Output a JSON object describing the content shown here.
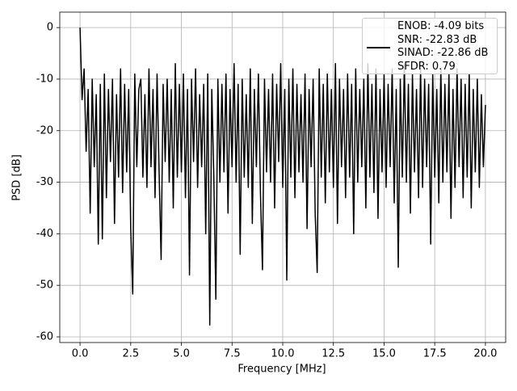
{
  "chart_data": {
    "type": "line",
    "xlabel": "Frequency [MHz]",
    "ylabel": "PSD [dB]",
    "xlim": [
      -1,
      21
    ],
    "ylim": [
      -61.1,
      3
    ],
    "xticks": [
      {
        "value": 0,
        "label": "0.0"
      },
      2.5,
      {
        "value": 5,
        "label": "5.0"
      },
      7.5,
      {
        "value": 10,
        "label": "10.0"
      },
      12.5,
      {
        "value": 15,
        "label": "15.0"
      },
      17.5,
      {
        "value": 20,
        "label": "20.0"
      }
    ],
    "yticks": [
      0,
      -10,
      -20,
      -30,
      -40,
      -50,
      -60
    ],
    "grid": true,
    "legend": "upper right",
    "x": [
      0,
      0.1,
      0.2,
      0.3,
      0.4,
      0.5,
      0.6,
      0.7,
      0.8,
      0.9,
      1,
      1.1,
      1.2,
      1.3,
      1.4,
      1.5,
      1.6,
      1.7,
      1.8,
      1.9,
      2,
      2.1,
      2.2,
      2.3,
      2.4,
      2.5,
      2.6,
      2.7,
      2.8,
      2.9,
      3,
      3.1,
      3.2,
      3.3,
      3.4,
      3.5,
      3.6,
      3.7,
      3.8,
      3.9,
      4,
      4.1,
      4.2,
      4.3,
      4.4,
      4.5,
      4.6,
      4.7,
      4.8,
      4.9,
      5,
      5.1,
      5.2,
      5.3,
      5.4,
      5.5,
      5.6,
      5.7,
      5.8,
      5.9,
      6,
      6.1,
      6.2,
      6.3,
      6.4,
      6.5,
      6.6,
      6.7,
      6.8,
      6.9,
      7,
      7.1,
      7.2,
      7.3,
      7.4,
      7.5,
      7.6,
      7.7,
      7.8,
      7.9,
      8,
      8.1,
      8.2,
      8.3,
      8.4,
      8.5,
      8.6,
      8.7,
      8.8,
      8.9,
      9,
      9.1,
      9.2,
      9.3,
      9.4,
      9.5,
      9.6,
      9.7,
      9.8,
      9.9,
      10,
      10.1,
      10.2,
      10.3,
      10.4,
      10.5,
      10.6,
      10.7,
      10.8,
      10.9,
      11,
      11.1,
      11.2,
      11.3,
      11.4,
      11.5,
      11.6,
      11.7,
      11.8,
      11.9,
      12,
      12.1,
      12.2,
      12.3,
      12.4,
      12.5,
      12.6,
      12.7,
      12.8,
      12.9,
      13,
      13.1,
      13.2,
      13.3,
      13.4,
      13.5,
      13.6,
      13.7,
      13.8,
      13.9,
      14,
      14.1,
      14.2,
      14.3,
      14.4,
      14.5,
      14.6,
      14.7,
      14.8,
      14.9,
      15,
      15.1,
      15.2,
      15.3,
      15.4,
      15.5,
      15.6,
      15.7,
      15.8,
      15.9,
      16,
      16.1,
      16.2,
      16.3,
      16.4,
      16.5,
      16.6,
      16.7,
      16.8,
      16.9,
      17,
      17.1,
      17.2,
      17.3,
      17.4,
      17.5,
      17.6,
      17.7,
      17.8,
      17.9,
      18,
      18.1,
      18.2,
      18.3,
      18.4,
      18.5,
      18.6,
      18.7,
      18.8,
      18.9,
      19,
      19.1,
      19.2,
      19.3,
      19.4,
      19.5,
      19.6,
      19.7,
      19.8,
      19.9,
      20
    ],
    "series": [
      {
        "name": "ENOB: -4.09 bits\nSNR: -22.83 dB\nSINAD: -22.86 dB\nSFDR: 0.79",
        "color": "#000000",
        "values": [
          0,
          -14,
          -8,
          -24,
          -12,
          -36,
          -10,
          -27,
          -13,
          -42,
          -11,
          -41,
          -9,
          -33,
          -12,
          -26,
          -10,
          -38,
          -13,
          -29,
          -8,
          -32,
          -11,
          -28,
          -12,
          -39,
          -51.7,
          -9,
          -27,
          -12,
          -10,
          -29,
          -13,
          -31,
          -8,
          -27,
          -12,
          -33,
          -9,
          -28,
          -45,
          -11,
          -26,
          -10,
          -30,
          -12,
          -35,
          -7,
          -29,
          -11,
          -28,
          -9,
          -33,
          -12,
          -48,
          -10,
          -26,
          -8,
          -31,
          -13,
          -27,
          -11,
          -40,
          -9,
          -57.7,
          -12,
          -29,
          -52.7,
          -10,
          -30,
          -11,
          -28,
          -9,
          -36,
          -12,
          -27,
          -7,
          -30,
          -11,
          -44,
          -10,
          -29,
          -13,
          -31,
          -8,
          -38,
          -12,
          -27,
          -9,
          -32,
          -47,
          -10,
          -28,
          -12,
          -30,
          -9,
          -35,
          -11,
          -26,
          -7,
          -31,
          -12,
          -49,
          -10,
          -29,
          -8,
          -33,
          -11,
          -28,
          -13,
          -30,
          -9,
          -39,
          -12,
          -27,
          -10,
          -36,
          -47.5,
          -8,
          -29,
          -11,
          -34,
          -9,
          -28,
          -12,
          -31,
          -7,
          -38,
          -10,
          -27,
          -12,
          -33,
          -9,
          -29,
          -11,
          -40,
          -8,
          -30,
          -12,
          -27,
          -10,
          -35,
          -7,
          -29,
          -11,
          -32,
          -8,
          -37,
          -12,
          -28,
          -9,
          -31,
          -11,
          -27,
          -8,
          -34,
          -12,
          -46.5,
          -10,
          -29,
          -7,
          -30,
          -11,
          -36,
          -9,
          -28,
          -12,
          -33,
          -8,
          -31,
          -10,
          -27,
          -11,
          -42,
          -9,
          -29,
          -12,
          -34,
          -8,
          -30,
          -11,
          -28,
          -9,
          -37,
          -12,
          -31,
          -8,
          -27,
          -10,
          -33,
          -11,
          -29,
          -9,
          -35,
          -12,
          -28,
          -10,
          -31,
          -13,
          -27,
          -15
        ]
      }
    ]
  }
}
